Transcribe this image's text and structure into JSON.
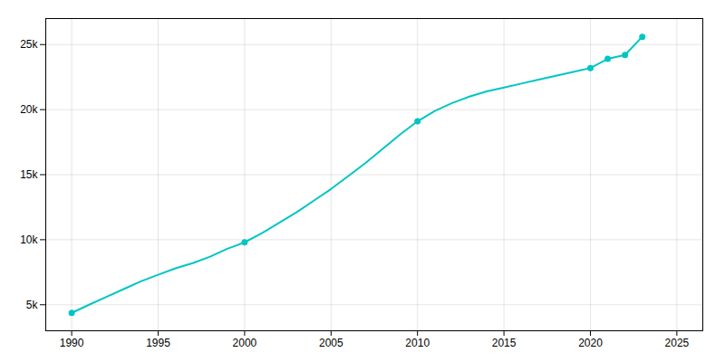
{
  "chart_data": {
    "type": "line",
    "x": [
      1990,
      1991,
      1992,
      1993,
      1994,
      1995,
      1996,
      1997,
      1998,
      1999,
      2000,
      2001,
      2002,
      2003,
      2004,
      2005,
      2006,
      2007,
      2008,
      2009,
      2010,
      2011,
      2012,
      2013,
      2014,
      2015,
      2016,
      2017,
      2018,
      2019,
      2020,
      2021,
      2022,
      2023
    ],
    "series": [
      {
        "type": "line",
        "color": "#00C5C5",
        "values": [
          4372,
          5000,
          5600,
          6200,
          6800,
          7300,
          7800,
          8200,
          8700,
          9300,
          9800,
          10500,
          11300,
          12100,
          13000,
          13900,
          14900,
          15900,
          17000,
          18100,
          19100,
          19900,
          20500,
          21000,
          21400,
          21700,
          22000,
          22300,
          22600,
          22900,
          23200,
          23900,
          24200,
          25600
        ]
      },
      {
        "type": "scatter",
        "color": "#00C5C5",
        "marker": "circle",
        "values": [
          4372,
          null,
          null,
          null,
          null,
          null,
          null,
          null,
          null,
          null,
          9800,
          null,
          null,
          null,
          null,
          null,
          null,
          null,
          null,
          null,
          19100,
          null,
          null,
          null,
          null,
          null,
          null,
          null,
          null,
          null,
          23200,
          23900,
          24200,
          25600
        ]
      }
    ],
    "xlim": [
      1988.5,
      2026.5
    ],
    "ylim": [
      3000,
      27000
    ],
    "xticks": [
      1990,
      1995,
      2000,
      2005,
      2010,
      2015,
      2020,
      2025
    ],
    "yticks": [
      {
        "value": 5000,
        "label": "5k"
      },
      {
        "value": 10000,
        "label": "10k"
      },
      {
        "value": 15000,
        "label": "15k"
      },
      {
        "value": 20000,
        "label": "20k"
      },
      {
        "value": 25000,
        "label": "25k"
      }
    ],
    "grid": true
  }
}
